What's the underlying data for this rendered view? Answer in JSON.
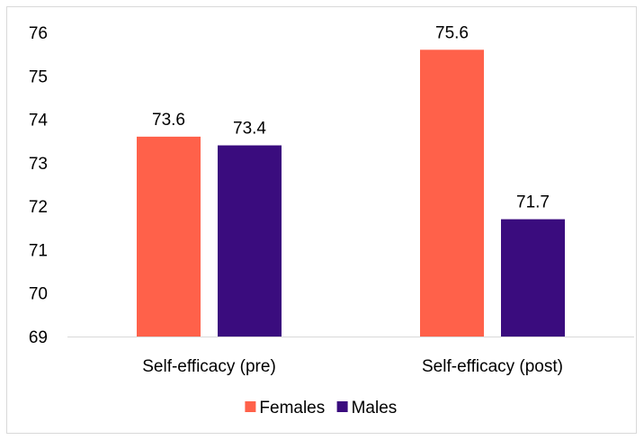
{
  "chart_data": {
    "type": "bar",
    "categories": [
      "Self-efficacy (pre)",
      "Self-efficacy (post)"
    ],
    "series": [
      {
        "name": "Females",
        "values": [
          73.6,
          75.6
        ],
        "color": "#FF614A"
      },
      {
        "name": "Males",
        "values": [
          73.4,
          71.7
        ],
        "color": "#3A0C7E"
      }
    ],
    "y_ticks": [
      "69",
      "70",
      "71",
      "72",
      "73",
      "74",
      "75",
      "76"
    ],
    "ylim": [
      69,
      76
    ],
    "data_labels": [
      [
        "73.6",
        "75.6"
      ],
      [
        "73.4",
        "71.7"
      ]
    ],
    "grid": false,
    "legend_position": "bottom"
  }
}
